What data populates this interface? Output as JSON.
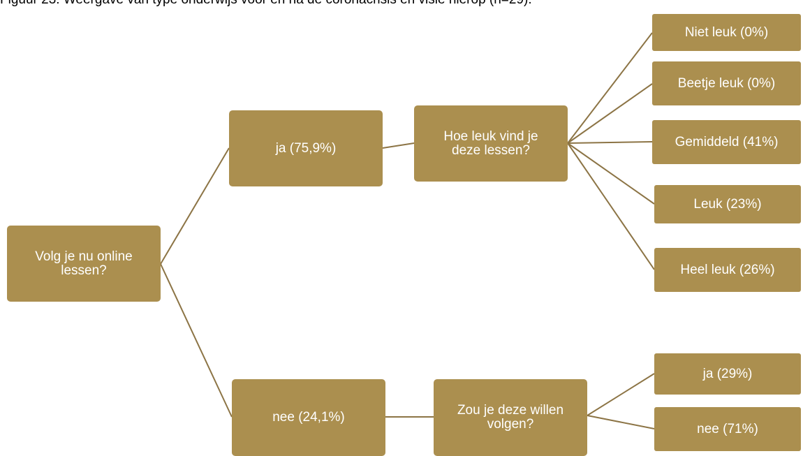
{
  "caption": "Figuur 23: Weergave van type onderwijs voor en na de coronacrisis en visie hierop (n=29).",
  "nodes": [
    {
      "label": "Volg je nu online lessen?"
    },
    {
      "label": "ja (75,9%)"
    },
    {
      "label": "Hoe leuk vind je deze lessen?"
    },
    {
      "label": "Niet leuk (0%)"
    },
    {
      "label": "Beetje leuk (0%)"
    },
    {
      "label": "Gemiddeld (41%)"
    },
    {
      "label": "Leuk (23%)"
    },
    {
      "label": "Heel leuk (26%)"
    },
    {
      "label": "nee (24,1%)"
    },
    {
      "label": "Zou je deze willen volgen?"
    },
    {
      "label": "ja (29%)"
    },
    {
      "label": "nee (71%)"
    }
  ]
}
